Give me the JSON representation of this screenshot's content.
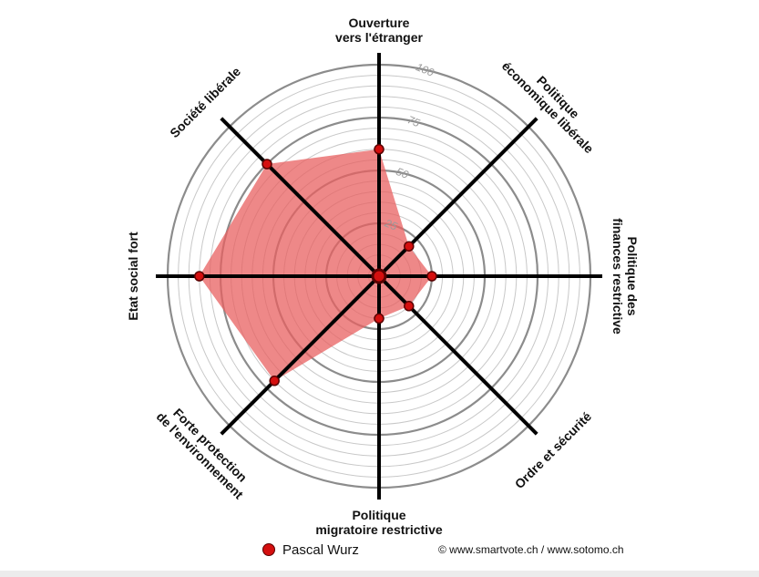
{
  "chart_data": {
    "type": "radar",
    "axes": [
      "Ouverture|vers l'étranger",
      "Politique|économique libérale",
      "Politique des|finances restrictive",
      "Ordre et sécurité",
      "Politique|migratoire restrictive",
      "Forte protection|de l'environnement",
      "Etat social fort",
      "Société libérale"
    ],
    "series": [
      {
        "name": "Pascal Wurz",
        "values": [
          60,
          20,
          25,
          20,
          20,
          70,
          85,
          75
        ]
      }
    ],
    "range": [
      0,
      100
    ],
    "ticks": [
      25,
      50,
      75,
      100
    ],
    "grid_step": 5,
    "colors": {
      "fill": "#e86060",
      "fill_opacity": 0.75,
      "point": "#d40f0f",
      "point_stroke": "#5a0000",
      "spoke": "#000000",
      "ring": "#c8c8c8",
      "major_ring": "#8c8c8c"
    }
  },
  "legend": {
    "series_name": "Pascal Wurz"
  },
  "footer": {
    "copyright": "© www.smartvote.ch / www.sotomo.ch"
  }
}
